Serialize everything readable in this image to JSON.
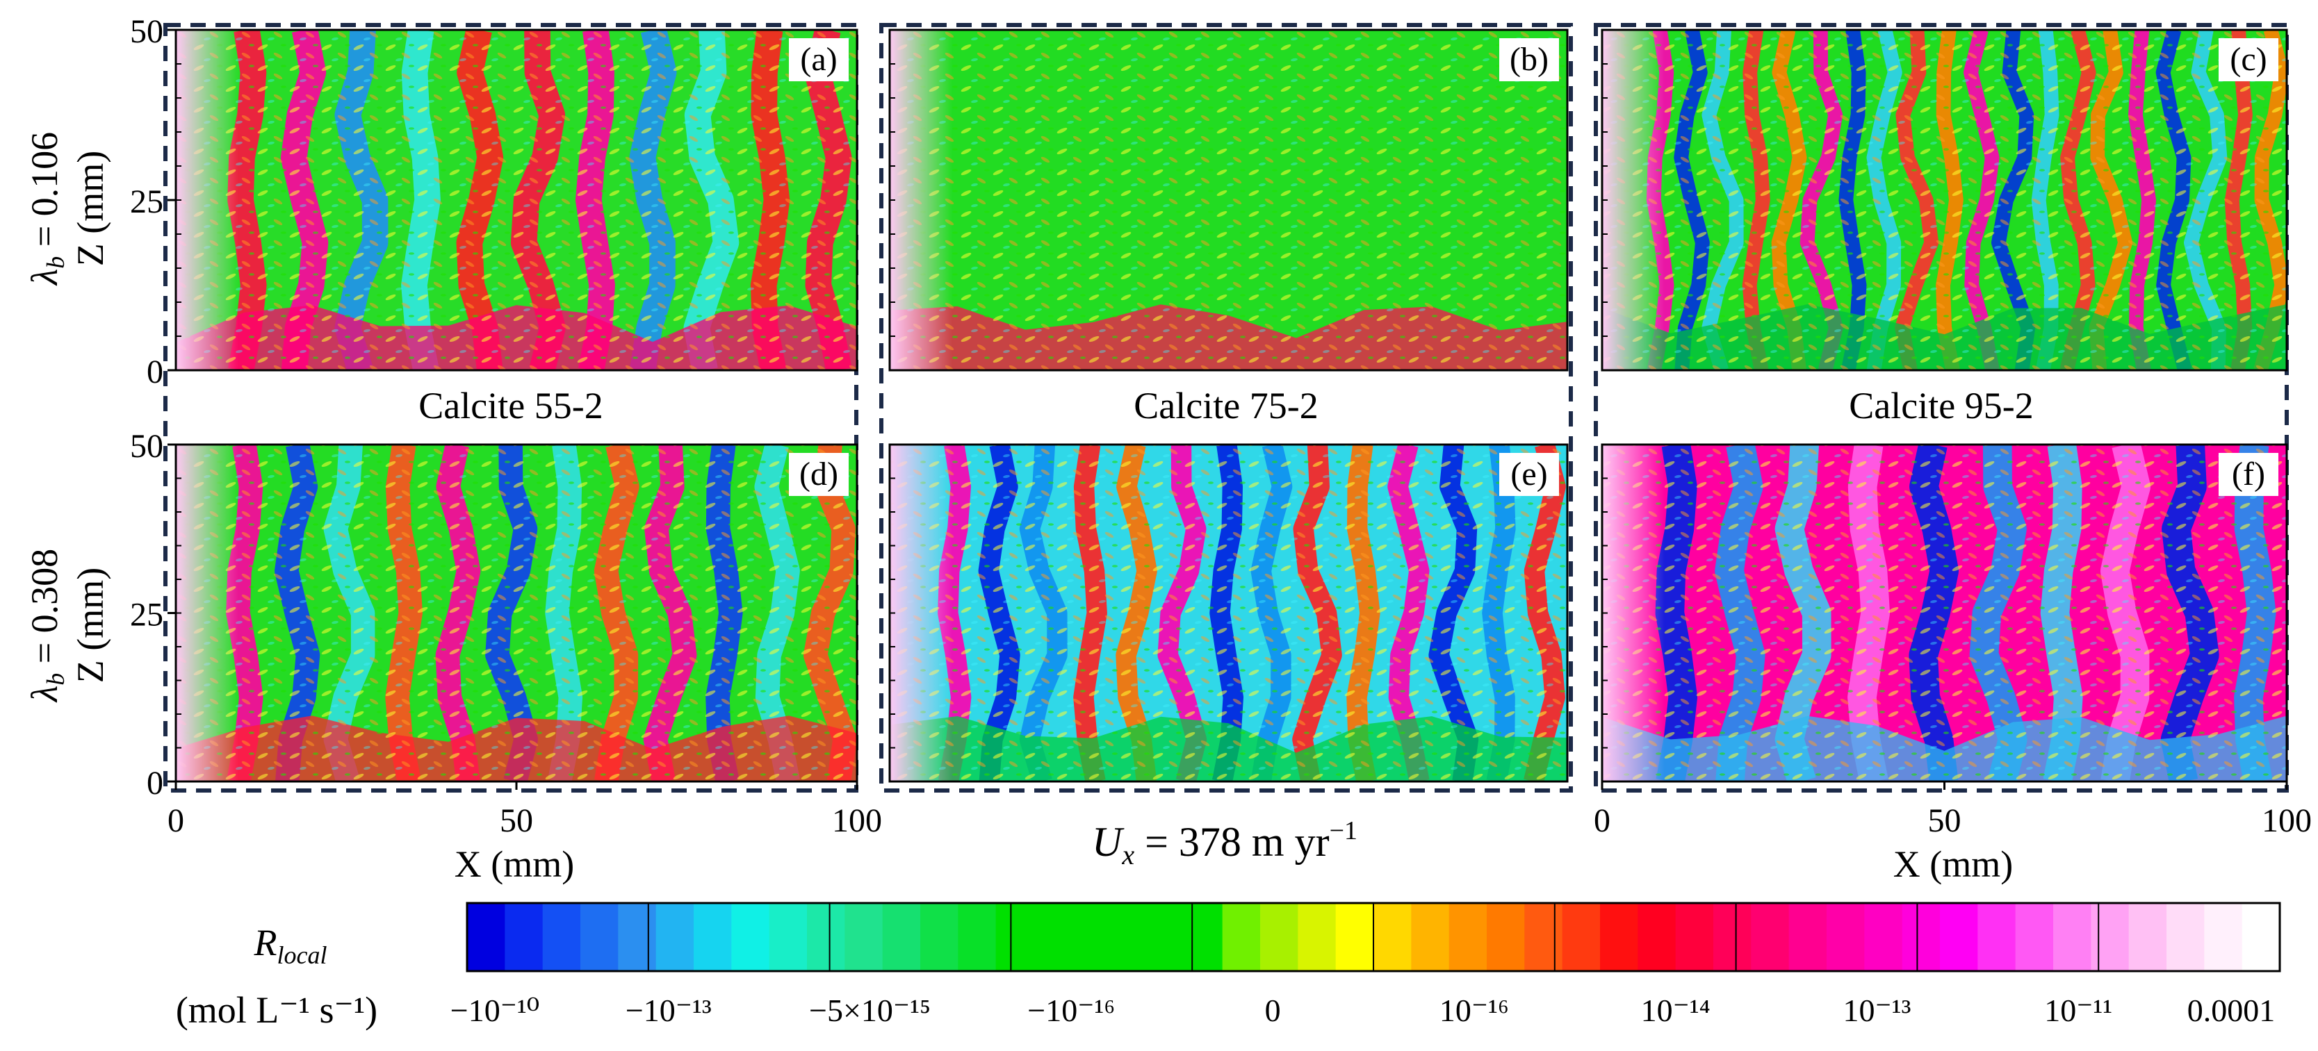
{
  "figure": {
    "velocity_label": {
      "main": "U",
      "sub": "x",
      "rest": " = 378 m yr",
      "sup": "−1"
    },
    "row_labels": [
      {
        "symbol": "λ",
        "sub": "b",
        "rest": " = 0.106"
      },
      {
        "symbol": "λ",
        "sub": "b",
        "rest": " = 0.308"
      }
    ],
    "column_titles": [
      "Calcite 55-2",
      "Calcite 75-2",
      "Calcite 95-2"
    ],
    "panel_labels": [
      "(a)",
      "(b)",
      "(c)",
      "(d)",
      "(e)",
      "(f)"
    ]
  },
  "chart_data": {
    "type": "heatmap",
    "title": "",
    "xlabel": "X (mm)",
    "ylabel": "Z (mm)",
    "xlim": [
      0,
      100
    ],
    "ylim": [
      0,
      50
    ],
    "x_ticks": [
      "0",
      "50",
      "100"
    ],
    "y_ticks": [
      "0",
      "25",
      "50"
    ],
    "colorbar": {
      "label_symbol": "R",
      "label_sub": "local",
      "units": "(mol L⁻¹ s⁻¹)",
      "tick_labels": [
        "−10⁻¹⁰",
        "−10⁻¹³",
        "−5×10⁻¹⁵",
        "−10⁻¹⁶",
        "0",
        "10⁻¹⁶",
        "10⁻¹⁴",
        "10⁻¹³",
        "10⁻¹¹",
        "0.0001"
      ],
      "colors": [
        "#0000e0",
        "#0a2af0",
        "#1450f4",
        "#1e6ef2",
        "#2b8ff0",
        "#22b4f2",
        "#16d4f0",
        "#10f0e6",
        "#18eec8",
        "#1ce8a8",
        "#20e28e",
        "#16e070",
        "#10e048",
        "#08e028",
        "#00e000",
        "#00e000",
        "#00e000",
        "#00e000",
        "#00e000",
        "#00e000",
        "#70f000",
        "#a8f000",
        "#d8f400",
        "#ffff00",
        "#ffd800",
        "#ffb400",
        "#ff9400",
        "#ff7a00",
        "#ff5a10",
        "#ff3a10",
        "#ff1010",
        "#ff0020",
        "#ff003c",
        "#ff0058",
        "#ff0070",
        "#ff0090",
        "#ff00a8",
        "#ff00c2",
        "#ff00dc",
        "#ff00f4",
        "#ff30f4",
        "#ff58f4",
        "#ff80f4",
        "#ffa2f4",
        "#ffc0f4",
        "#ffdcf8",
        "#fff0fc",
        "#ffffff"
      ],
      "dividers": [
        0,
        0.1,
        0.2,
        0.3,
        0.4,
        0.5,
        0.6,
        0.7,
        0.8,
        0.9,
        1.0
      ]
    },
    "panels": [
      {
        "label": "(a)",
        "sample": "Calcite 55-2",
        "lambda_b": 0.106
      },
      {
        "label": "(b)",
        "sample": "Calcite 75-2",
        "lambda_b": 0.106
      },
      {
        "label": "(c)",
        "sample": "Calcite 95-2",
        "lambda_b": 0.106
      },
      {
        "label": "(d)",
        "sample": "Calcite 55-2",
        "lambda_b": 0.308
      },
      {
        "label": "(e)",
        "sample": "Calcite 75-2",
        "lambda_b": 0.308
      },
      {
        "label": "(f)",
        "sample": "Calcite 95-2",
        "lambda_b": 0.308
      }
    ]
  }
}
